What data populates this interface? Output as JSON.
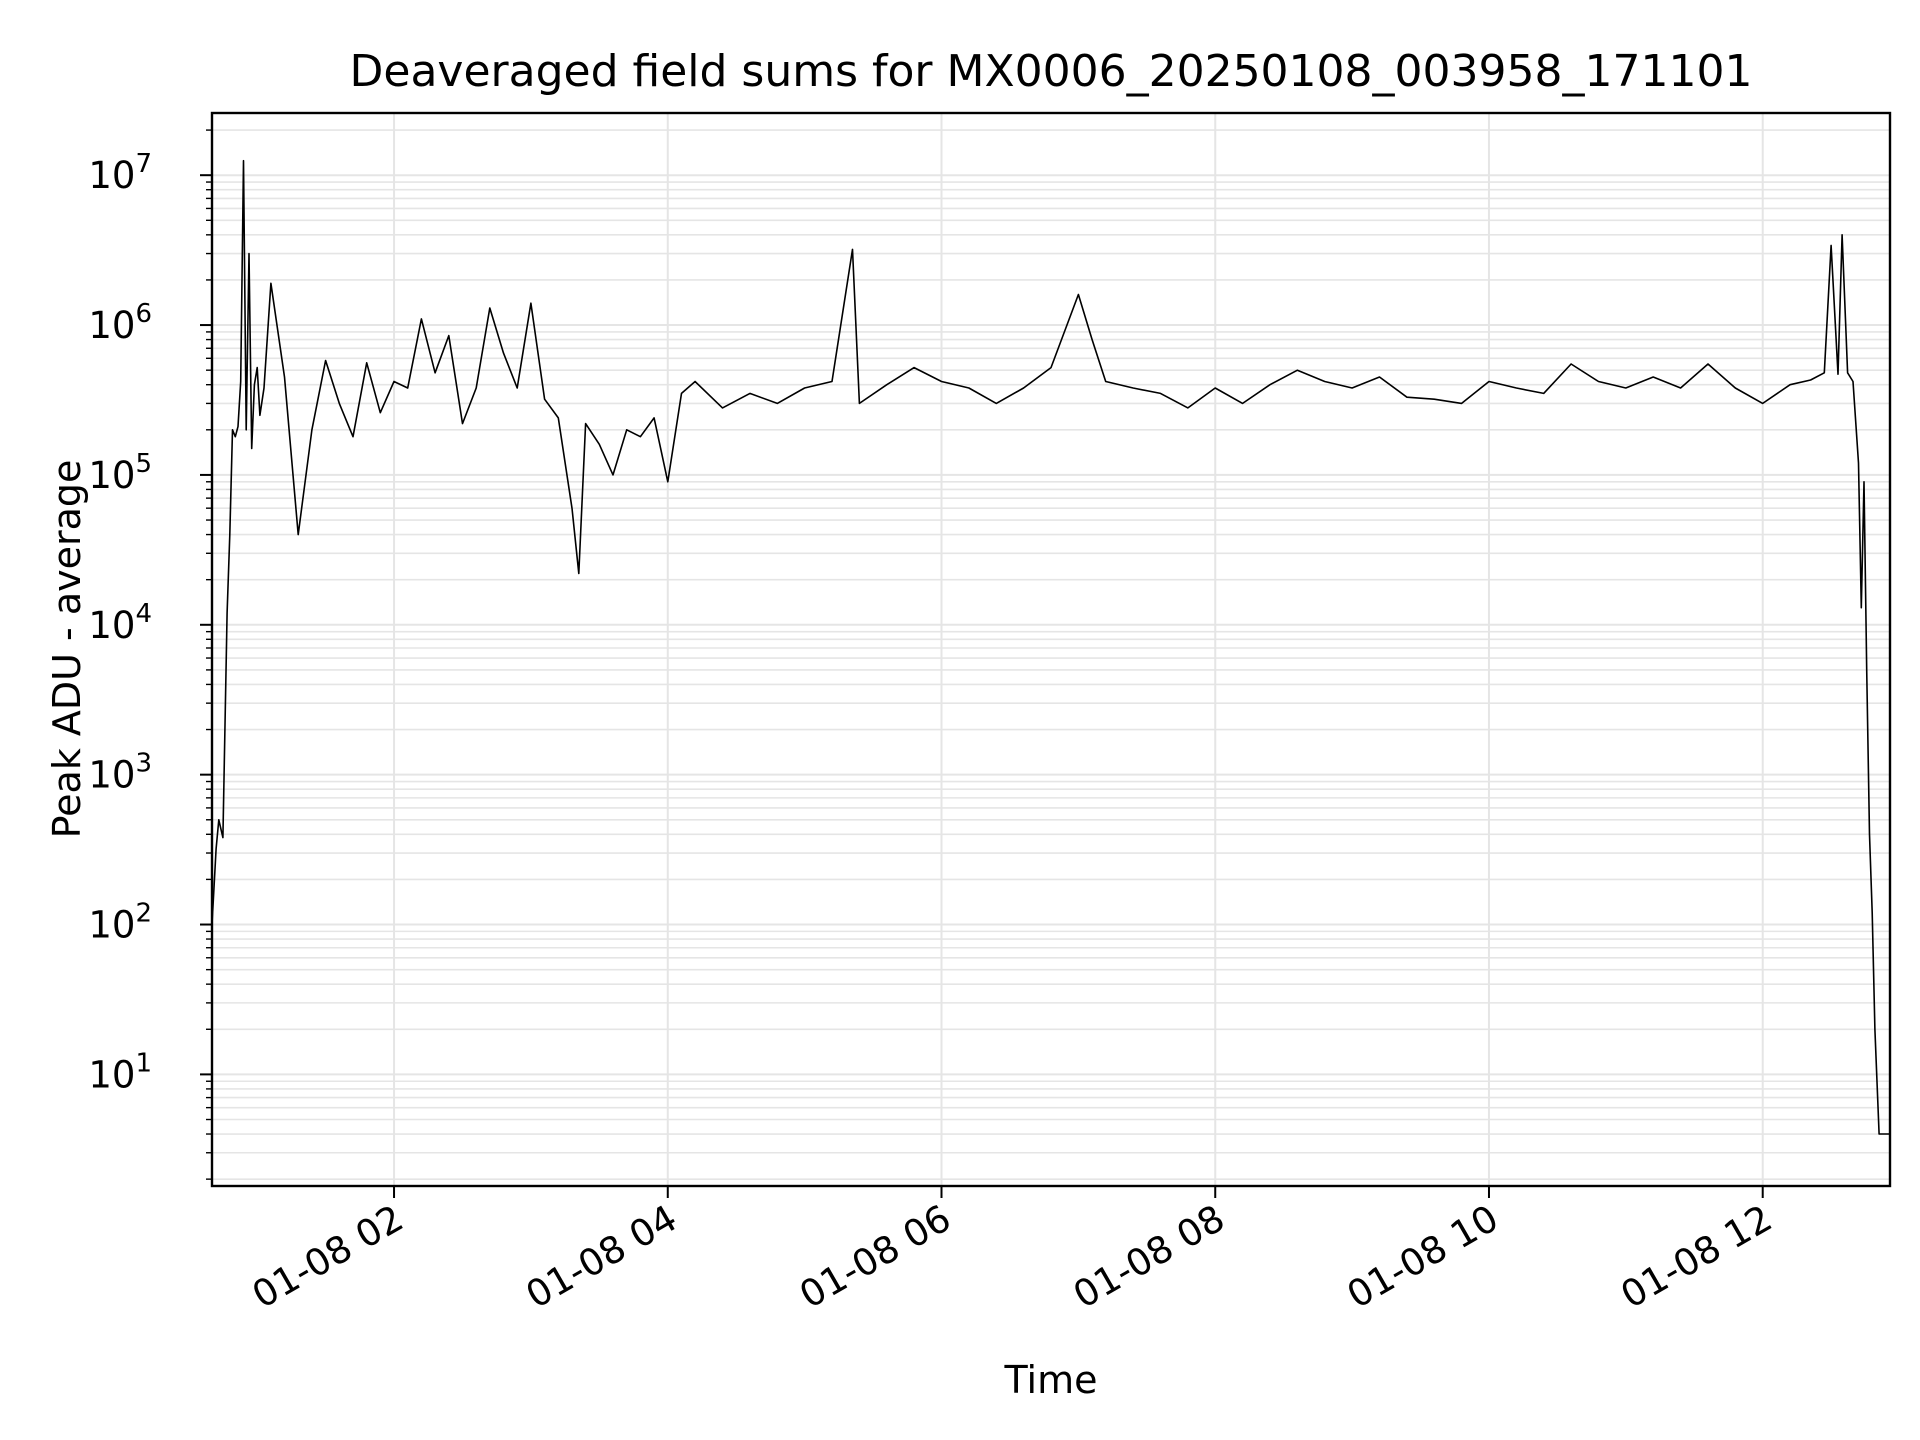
{
  "chart_data": {
    "type": "line",
    "title": "Deaveraged field sums for MX0006_20250108_003958_171101",
    "xlabel": "Time",
    "ylabel": "Peak ADU - average",
    "x_tick_labels": [
      "01-08 02",
      "01-08 04",
      "01-08 06",
      "01-08 08",
      "01-08 10",
      "01-08 12"
    ],
    "x_tick_hours": [
      2,
      4,
      6,
      8,
      10,
      12
    ],
    "y_tick_labels": [
      {
        "base": "10",
        "exp": "1"
      },
      {
        "base": "10",
        "exp": "2"
      },
      {
        "base": "10",
        "exp": "3"
      },
      {
        "base": "10",
        "exp": "4"
      },
      {
        "base": "10",
        "exp": "5"
      },
      {
        "base": "10",
        "exp": "6"
      },
      {
        "base": "10",
        "exp": "7"
      }
    ],
    "y_scale": "log",
    "xlim_hours": [
      0.67,
      12.93
    ],
    "ylim": [
      1.8,
      26000000
    ],
    "grid": true,
    "line_color": "#000000",
    "series": [
      {
        "x_hours": [
          0.67,
          0.7,
          0.72,
          0.75,
          0.78,
          0.8,
          0.82,
          0.84,
          0.86,
          0.88,
          0.9,
          0.92,
          0.94,
          0.96,
          0.98,
          1.0,
          1.02,
          1.05,
          1.1,
          1.2,
          1.3,
          1.4,
          1.5,
          1.6,
          1.7,
          1.8,
          1.9,
          2.0,
          2.1,
          2.2,
          2.3,
          2.4,
          2.5,
          2.6,
          2.7,
          2.8,
          2.9,
          3.0,
          3.1,
          3.2,
          3.3,
          3.35,
          3.4,
          3.5,
          3.6,
          3.7,
          3.8,
          3.9,
          4.0,
          4.1,
          4.2,
          4.4,
          4.6,
          4.8,
          5.0,
          5.2,
          5.35,
          5.4,
          5.6,
          5.8,
          6.0,
          6.2,
          6.4,
          6.6,
          6.8,
          7.0,
          7.1,
          7.2,
          7.4,
          7.6,
          7.8,
          8.0,
          8.2,
          8.4,
          8.6,
          8.8,
          9.0,
          9.2,
          9.4,
          9.6,
          9.8,
          10.0,
          10.2,
          10.4,
          10.6,
          10.8,
          11.0,
          11.2,
          11.4,
          11.6,
          11.8,
          12.0,
          12.2,
          12.35,
          12.45,
          12.5,
          12.55,
          12.58,
          12.62,
          12.66,
          12.7,
          12.72,
          12.74,
          12.76,
          12.78,
          12.8,
          12.82,
          12.85,
          12.93
        ],
        "values": [
          100,
          320,
          500,
          380,
          12000,
          40000,
          200000,
          180000,
          210000,
          420000,
          12500000,
          200000,
          3000000,
          150000,
          400000,
          520000,
          250000,
          380000,
          1900000,
          450000,
          40000,
          200000,
          580000,
          300000,
          180000,
          560000,
          260000,
          420000,
          380000,
          1100000,
          480000,
          850000,
          220000,
          380000,
          1300000,
          650000,
          380000,
          1400000,
          320000,
          240000,
          60000,
          22000,
          220000,
          160000,
          100000,
          200000,
          180000,
          240000,
          90000,
          350000,
          420000,
          280000,
          350000,
          300000,
          380000,
          420000,
          3200000,
          300000,
          400000,
          520000,
          420000,
          380000,
          300000,
          380000,
          520000,
          1600000,
          800000,
          420000,
          380000,
          350000,
          280000,
          380000,
          300000,
          400000,
          500000,
          420000,
          380000,
          450000,
          330000,
          320000,
          300000,
          420000,
          380000,
          350000,
          550000,
          420000,
          380000,
          450000,
          380000,
          550000,
          380000,
          300000,
          400000,
          430000,
          480000,
          3400000,
          470000,
          4000000,
          480000,
          420000,
          120000,
          13000,
          90000,
          5000,
          400,
          120,
          20,
          4,
          4
        ]
      }
    ]
  }
}
